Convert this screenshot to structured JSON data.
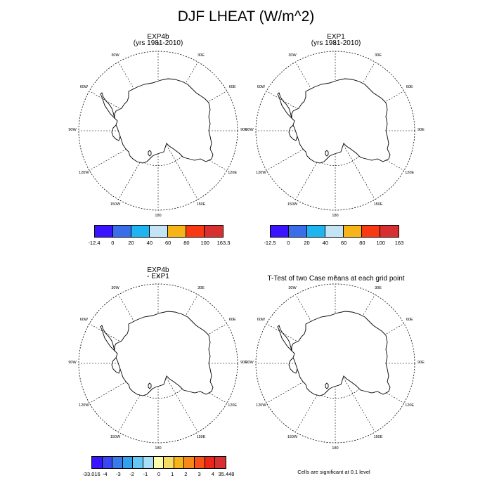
{
  "title": "DJF LHEAT (W/m^2)",
  "panels": [
    {
      "title1": "EXP4b",
      "title2": "(yrs 1981-2010)"
    },
    {
      "title1": "EXP1",
      "title2": "(yrs 1981-2010)"
    },
    {
      "title1": "EXP4b",
      "title2": "- EXP1"
    },
    {
      "title1": "T-Test of two Case means at each grid point",
      "title2": ""
    }
  ],
  "lon_labels": [
    "0",
    "30E",
    "60E",
    "90E",
    "120E",
    "150E",
    "180",
    "150W",
    "120W",
    "90W",
    "60W",
    "30W"
  ],
  "colorbars": [
    {
      "colors": [
        "#3a14ff",
        "#3a6ee8",
        "#1eb4f0",
        "#c2e4f4",
        "#f7b418",
        "#f73a14",
        "#d83030"
      ],
      "ticks": [
        "-12.4",
        "0",
        "20",
        "40",
        "60",
        "80",
        "100",
        "163.3"
      ]
    },
    {
      "colors": [
        "#3a14ff",
        "#3a6ee8",
        "#1eb4f0",
        "#c2e4f4",
        "#f7b418",
        "#f73a14",
        "#d83030"
      ],
      "ticks": [
        "-12.5",
        "0",
        "20",
        "40",
        "60",
        "80",
        "100",
        "163"
      ]
    },
    {
      "colors": [
        "#3a14ff",
        "#3a46f4",
        "#3a7aea",
        "#32a2ee",
        "#64c8f4",
        "#aaddf6",
        "#fdfdaa",
        "#f7dc64",
        "#f7b418",
        "#f78818",
        "#f75018",
        "#ee2418",
        "#d83030"
      ],
      "ticks": [
        "-33.016",
        "-4",
        "-3",
        "-2",
        "-1",
        "0",
        "1",
        "2",
        "3",
        "4",
        "35.448"
      ]
    }
  ],
  "footnote": "Cells are significant at 0.1 level"
}
